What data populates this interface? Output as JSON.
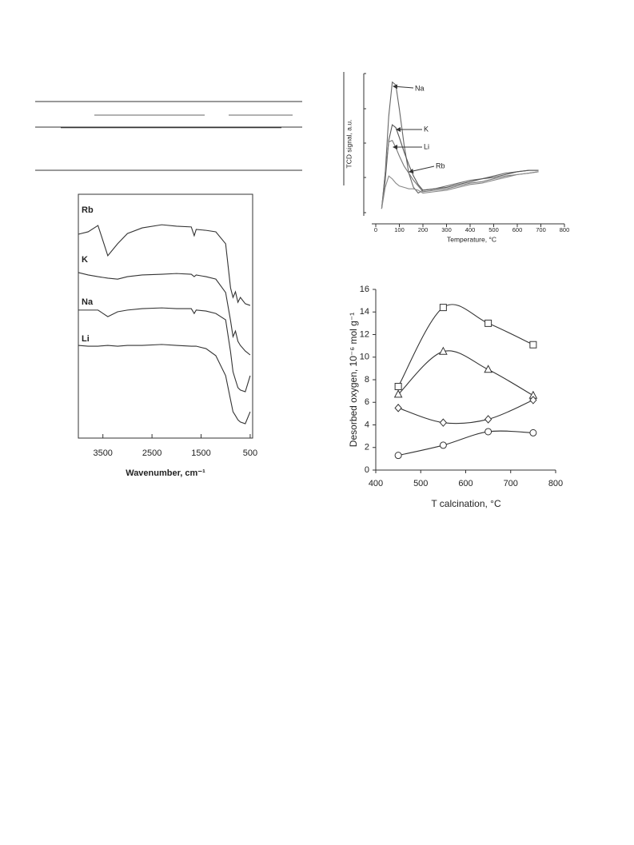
{
  "chart_data": [
    {
      "type": "line",
      "xlabel": "Wavenumber, cm⁻¹",
      "x": [
        4000,
        3800,
        3600,
        3400,
        3200,
        3000,
        2700,
        2300,
        2000,
        1700,
        1640,
        1600,
        1400,
        1200,
        1000,
        900,
        850,
        800,
        750,
        700,
        600,
        500
      ],
      "xlim": [
        4000,
        450
      ],
      "xticks": [
        3500,
        2500,
        1500,
        500
      ],
      "ylim": [
        0,
        10
      ],
      "series": [
        {
          "name": "Rb",
          "color": "#333333",
          "values": [
            8.36,
            8.46,
            8.72,
            7.48,
            7.97,
            8.39,
            8.62,
            8.75,
            8.69,
            8.66,
            8.3,
            8.56,
            8.52,
            8.46,
            7.97,
            6.16,
            5.77,
            6.0,
            5.57,
            5.77,
            5.51,
            5.44
          ]
        },
        {
          "name": "K",
          "color": "#333333",
          "values": [
            6.79,
            6.69,
            6.62,
            6.56,
            6.52,
            6.62,
            6.69,
            6.72,
            6.75,
            6.72,
            6.62,
            6.69,
            6.62,
            6.52,
            5.97,
            4.82,
            4.16,
            4.39,
            3.97,
            3.8,
            3.57,
            3.41
          ]
        },
        {
          "name": "Na",
          "color": "#333333",
          "values": [
            5.25,
            5.25,
            5.25,
            4.98,
            5.18,
            5.25,
            5.31,
            5.34,
            5.31,
            5.31,
            5.11,
            5.25,
            5.21,
            5.11,
            4.85,
            3.54,
            2.72,
            2.39,
            2.07,
            1.97,
            1.9,
            2.56
          ]
        },
        {
          "name": "Li",
          "color": "#333333",
          "values": [
            3.8,
            3.77,
            3.77,
            3.8,
            3.77,
            3.8,
            3.8,
            3.84,
            3.8,
            3.77,
            3.77,
            3.77,
            3.67,
            3.38,
            2.56,
            1.57,
            1.08,
            0.92,
            0.75,
            0.66,
            0.59,
            1.08
          ]
        }
      ]
    },
    {
      "type": "line",
      "xlabel": "Temperature, °C",
      "ylabel": "TCD signal, a.u.",
      "x": [
        25,
        40,
        55,
        70,
        85,
        100,
        120,
        140,
        160,
        180,
        200,
        250,
        300,
        350,
        400,
        450,
        500,
        550,
        600,
        650,
        690
      ],
      "xlim": [
        0,
        800
      ],
      "xticks": [
        0,
        100,
        200,
        300,
        400,
        500,
        600,
        700,
        800
      ],
      "ylim": [
        0,
        10
      ],
      "series": [
        {
          "name": "Na",
          "color": "#666666",
          "values": [
            0.5,
            3,
            7,
            9.4,
            9.2,
            7.5,
            5,
            3,
            2,
            1.6,
            1.8,
            1.9,
            2.1,
            2.3,
            2.5,
            2.6,
            2.8,
            3.0,
            3.1,
            3.2,
            3.2
          ]
        },
        {
          "name": "K",
          "color": "#555555",
          "values": [
            0.5,
            2.5,
            5.3,
            6.4,
            6.2,
            5.5,
            4.5,
            3.6,
            2.8,
            2.2,
            1.8,
            1.9,
            2.0,
            2.2,
            2.4,
            2.6,
            2.7,
            2.9,
            3.1,
            3.2,
            3.2
          ]
        },
        {
          "name": "Li",
          "color": "#777777",
          "values": [
            0.5,
            3,
            5.2,
            5.3,
            4.8,
            4.2,
            3.5,
            3.0,
            2.5,
            2.1,
            1.7,
            1.8,
            1.9,
            2.1,
            2.3,
            2.4,
            2.6,
            2.8,
            2.9,
            3.0,
            3.1
          ]
        },
        {
          "name": "Rb",
          "color": "#888888",
          "values": [
            0.5,
            2,
            2.8,
            2.6,
            2.3,
            2.1,
            2.0,
            1.9,
            1.9,
            1.8,
            1.6,
            1.7,
            1.8,
            2.0,
            2.2,
            2.3,
            2.5,
            2.7,
            2.9,
            3.0,
            3.1
          ]
        }
      ]
    },
    {
      "type": "smooth",
      "xlabel": "T calcination, °C",
      "ylabel": "Desorbed oxygen, 10⁻⁶ mol g⁻¹",
      "x": [
        450,
        550,
        650,
        750
      ],
      "xlim": [
        400,
        800
      ],
      "xticks": [
        400,
        500,
        600,
        700,
        800
      ],
      "ylim": [
        0,
        16
      ],
      "yticks": [
        0,
        2,
        4,
        6,
        8,
        10,
        12,
        14,
        16
      ],
      "series": [
        {
          "marker": "square",
          "color": "#333333",
          "values": [
            7.4,
            14.4,
            13.0,
            11.1
          ]
        },
        {
          "marker": "triangle",
          "color": "#333333",
          "values": [
            6.7,
            10.5,
            8.9,
            6.6
          ]
        },
        {
          "marker": "diamond",
          "color": "#333333",
          "values": [
            5.5,
            4.2,
            4.5,
            6.2
          ]
        },
        {
          "marker": "circle",
          "color": "#333333",
          "values": [
            1.3,
            2.2,
            3.4,
            3.3
          ]
        }
      ]
    }
  ]
}
